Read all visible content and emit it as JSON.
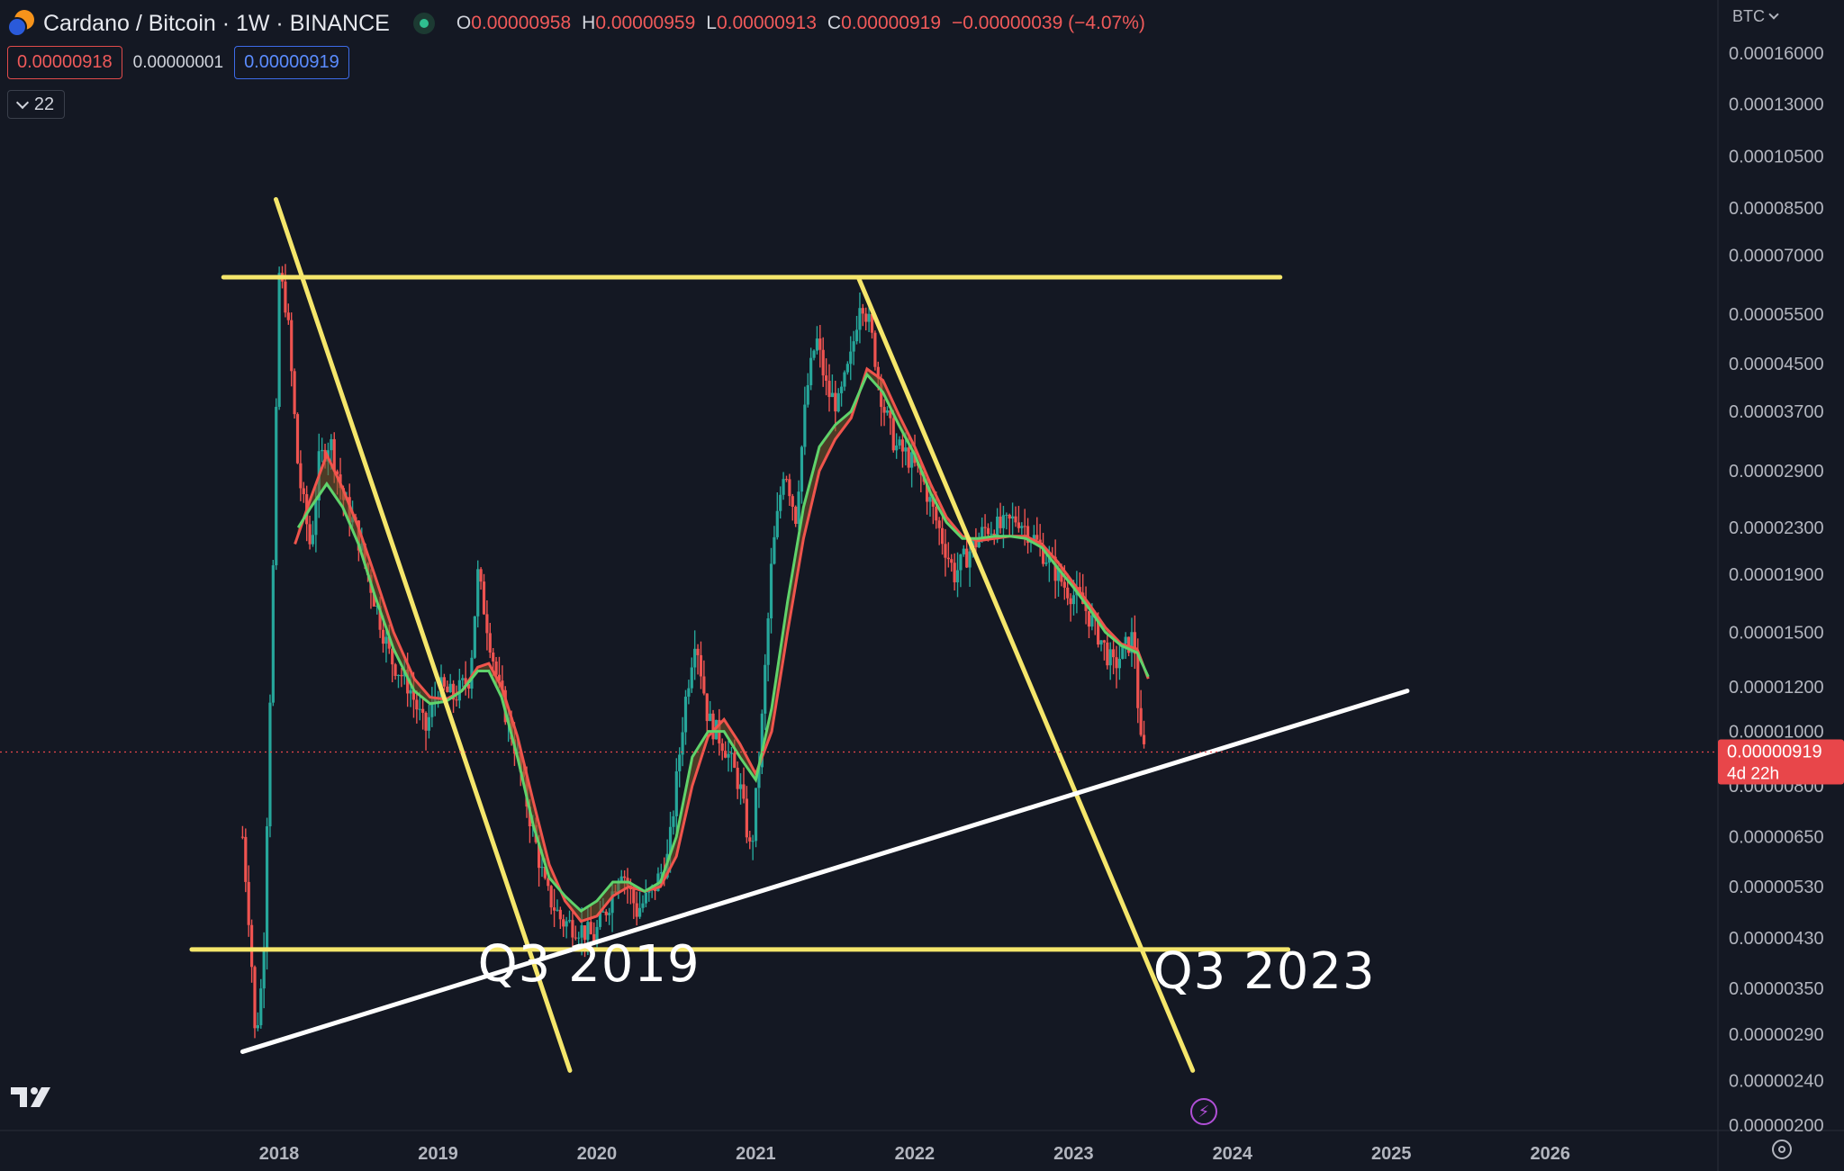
{
  "header": {
    "symbol_title": "Cardano / Bitcoin · 1W · BINANCE",
    "ohlc": {
      "o_label": "O",
      "o_value": "0.00000958",
      "h_label": "H",
      "h_value": "0.00000959",
      "l_label": "L",
      "l_value": "0.00000913",
      "c_label": "C",
      "c_value": "0.00000919",
      "change": "−0.00000039 (−4.07%)"
    }
  },
  "prices": {
    "sell": "0.00000918",
    "spread": "0.00000001",
    "buy": "0.00000919"
  },
  "indicator_toggle": {
    "count": "22"
  },
  "price_scale": {
    "currency": "BTC"
  },
  "last_price": {
    "value": "0.00000919",
    "countdown": "4d 22h"
  },
  "colors": {
    "background": "#141823",
    "bull": "#26a69a",
    "bear": "#ef5350",
    "ma_fast": "#5fd36b",
    "ma_slow": "#f0544c",
    "trendline_yellow": "#f5e66b",
    "trendline_white": "#ffffff",
    "last_price_bg": "#e8464a"
  },
  "chart_data": {
    "type": "candlestick",
    "scale": "log",
    "y_ticks": [
      0.00016,
      0.00013,
      0.000105,
      8.5e-05,
      7e-05,
      5.5e-05,
      4.5e-05,
      3.7e-05,
      2.9e-05,
      2.3e-05,
      1.9e-05,
      1.5e-05,
      1.2e-05,
      1e-05,
      8e-06,
      6.5e-06,
      5.3e-06,
      4.3e-06,
      3.5e-06,
      2.9e-06,
      2.4e-06,
      2e-06
    ],
    "y_tick_labels": [
      "0.00016000",
      "0.00013000",
      "0.00010500",
      "0.00008500",
      "0.00007000",
      "0.00005500",
      "0.00004500",
      "0.00003700",
      "0.00002900",
      "0.00002300",
      "0.00001900",
      "0.00001500",
      "0.00001200",
      "0.00001000",
      "0.00000800",
      "0.00000650",
      "0.00000530",
      "0.00000430",
      "0.00000350",
      "0.00000290",
      "0.00000240",
      "0.00000200"
    ],
    "x_labels": [
      "2018",
      "2019",
      "2020",
      "2021",
      "2022",
      "2023",
      "2024",
      "2025",
      "2026"
    ],
    "x_label_dates": [
      2018.0,
      2019.0,
      2020.0,
      2021.0,
      2022.0,
      2023.0,
      2024.0,
      2025.0,
      2026.0
    ],
    "price_path": [
      [
        2017.77,
        6.5e-06
      ],
      [
        2017.82,
        4.3e-06
      ],
      [
        2017.85,
        2.8e-06
      ],
      [
        2017.9,
        3.8e-06
      ],
      [
        2017.96,
        1.8e-05
      ],
      [
        2018.0,
        6.5e-05
      ],
      [
        2018.05,
        5.6e-05
      ],
      [
        2018.12,
        2.9e-05
      ],
      [
        2018.2,
        2.1e-05
      ],
      [
        2018.25,
        3e-05
      ],
      [
        2018.32,
        3.3e-05
      ],
      [
        2018.4,
        2.6e-05
      ],
      [
        2018.48,
        2.3e-05
      ],
      [
        2018.58,
        1.8e-05
      ],
      [
        2018.7,
        1.35e-05
      ],
      [
        2018.82,
        1.2e-05
      ],
      [
        2018.92,
        1e-05
      ],
      [
        2019.0,
        1.2e-05
      ],
      [
        2019.1,
        1.15e-05
      ],
      [
        2019.2,
        1.25e-05
      ],
      [
        2019.25,
        1.9e-05
      ],
      [
        2019.3,
        1.6e-05
      ],
      [
        2019.38,
        1.2e-05
      ],
      [
        2019.48,
        9.5e-06
      ],
      [
        2019.58,
        7e-06
      ],
      [
        2019.68,
        5.2e-06
      ],
      [
        2019.78,
        4.6e-06
      ],
      [
        2019.88,
        4.5e-06
      ],
      [
        2019.98,
        4.3e-06
      ],
      [
        2020.08,
        5e-06
      ],
      [
        2020.15,
        5.8e-06
      ],
      [
        2020.25,
        4.8e-06
      ],
      [
        2020.35,
        5.2e-06
      ],
      [
        2020.45,
        6e-06
      ],
      [
        2020.55,
        1.1e-05
      ],
      [
        2020.62,
        1.5e-05
      ],
      [
        2020.7,
        1.05e-05
      ],
      [
        2020.8,
        9.5e-06
      ],
      [
        2020.9,
        8e-06
      ],
      [
        2020.97,
        6e-06
      ],
      [
        2021.03,
        9.5e-06
      ],
      [
        2021.1,
        2e-05
      ],
      [
        2021.18,
        3e-05
      ],
      [
        2021.25,
        2.4e-05
      ],
      [
        2021.32,
        4e-05
      ],
      [
        2021.38,
        5e-05
      ],
      [
        2021.45,
        4e-05
      ],
      [
        2021.52,
        3.8e-05
      ],
      [
        2021.6,
        4.6e-05
      ],
      [
        2021.66,
        6e-05
      ],
      [
        2021.72,
        5.2e-05
      ],
      [
        2021.8,
        3.8e-05
      ],
      [
        2021.88,
        3.2e-05
      ],
      [
        2021.95,
        3.1e-05
      ],
      [
        2022.05,
        2.8e-05
      ],
      [
        2022.15,
        2.3e-05
      ],
      [
        2022.25,
        1.9e-05
      ],
      [
        2022.35,
        2.1e-05
      ],
      [
        2022.45,
        2.3e-05
      ],
      [
        2022.55,
        2.3e-05
      ],
      [
        2022.65,
        2.4e-05
      ],
      [
        2022.75,
        2.2e-05
      ],
      [
        2022.85,
        2e-05
      ],
      [
        2022.95,
        1.8e-05
      ],
      [
        2023.05,
        1.7e-05
      ],
      [
        2023.15,
        1.5e-05
      ],
      [
        2023.25,
        1.3e-05
      ],
      [
        2023.32,
        1.4e-05
      ],
      [
        2023.38,
        1.48e-05
      ],
      [
        2023.42,
        9.5e-06
      ],
      [
        2023.45,
        9.19e-06
      ]
    ],
    "ma_fast_path": [
      [
        2018.12,
        2.3e-05
      ],
      [
        2018.2,
        2.5e-05
      ],
      [
        2018.3,
        2.75e-05
      ],
      [
        2018.4,
        2.5e-05
      ],
      [
        2018.5,
        2.15e-05
      ],
      [
        2018.6,
        1.75e-05
      ],
      [
        2018.72,
        1.4e-05
      ],
      [
        2018.85,
        1.18e-05
      ],
      [
        2018.95,
        1.12e-05
      ],
      [
        2019.05,
        1.13e-05
      ],
      [
        2019.15,
        1.18e-05
      ],
      [
        2019.25,
        1.28e-05
      ],
      [
        2019.32,
        1.28e-05
      ],
      [
        2019.4,
        1.15e-05
      ],
      [
        2019.5,
        9e-06
      ],
      [
        2019.6,
        6.8e-06
      ],
      [
        2019.7,
        5.5e-06
      ],
      [
        2019.8,
        5.1e-06
      ],
      [
        2019.9,
        4.8e-06
      ],
      [
        2020.0,
        5e-06
      ],
      [
        2020.1,
        5.4e-06
      ],
      [
        2020.2,
        5.4e-06
      ],
      [
        2020.3,
        5.2e-06
      ],
      [
        2020.4,
        5.4e-06
      ],
      [
        2020.5,
        6.5e-06
      ],
      [
        2020.6,
        9e-06
      ],
      [
        2020.7,
        1e-05
      ],
      [
        2020.8,
        1e-05
      ],
      [
        2020.9,
        9e-06
      ],
      [
        2021.0,
        8.2e-06
      ],
      [
        2021.1,
        1.1e-05
      ],
      [
        2021.2,
        1.7e-05
      ],
      [
        2021.3,
        2.5e-05
      ],
      [
        2021.4,
        3.2e-05
      ],
      [
        2021.5,
        3.5e-05
      ],
      [
        2021.6,
        3.7e-05
      ],
      [
        2021.7,
        4.3e-05
      ],
      [
        2021.8,
        4e-05
      ],
      [
        2021.9,
        3.5e-05
      ],
      [
        2022.0,
        3.1e-05
      ],
      [
        2022.1,
        2.65e-05
      ],
      [
        2022.2,
        2.35e-05
      ],
      [
        2022.3,
        2.2e-05
      ],
      [
        2022.4,
        2.2e-05
      ],
      [
        2022.5,
        2.22e-05
      ],
      [
        2022.6,
        2.22e-05
      ],
      [
        2022.7,
        2.2e-05
      ],
      [
        2022.8,
        2.12e-05
      ],
      [
        2022.9,
        1.95e-05
      ],
      [
        2023.0,
        1.8e-05
      ],
      [
        2023.1,
        1.65e-05
      ],
      [
        2023.2,
        1.5e-05
      ],
      [
        2023.3,
        1.42e-05
      ],
      [
        2023.4,
        1.38e-05
      ],
      [
        2023.47,
        1.25e-05
      ]
    ],
    "ma_slow_path": [
      [
        2018.1,
        2.15e-05
      ],
      [
        2018.2,
        2.6e-05
      ],
      [
        2018.3,
        3.1e-05
      ],
      [
        2018.4,
        2.7e-05
      ],
      [
        2018.5,
        2.3e-05
      ],
      [
        2018.6,
        1.9e-05
      ],
      [
        2018.72,
        1.5e-05
      ],
      [
        2018.85,
        1.24e-05
      ],
      [
        2018.95,
        1.15e-05
      ],
      [
        2019.05,
        1.14e-05
      ],
      [
        2019.15,
        1.18e-05
      ],
      [
        2019.25,
        1.3e-05
      ],
      [
        2019.32,
        1.32e-05
      ],
      [
        2019.4,
        1.2e-05
      ],
      [
        2019.5,
        9.8e-06
      ],
      [
        2019.6,
        7.5e-06
      ],
      [
        2019.7,
        5.8e-06
      ],
      [
        2019.8,
        5e-06
      ],
      [
        2019.9,
        4.6e-06
      ],
      [
        2020.0,
        4.7e-06
      ],
      [
        2020.1,
        5.1e-06
      ],
      [
        2020.2,
        5.3e-06
      ],
      [
        2020.3,
        5.2e-06
      ],
      [
        2020.4,
        5.3e-06
      ],
      [
        2020.5,
        6e-06
      ],
      [
        2020.6,
        8e-06
      ],
      [
        2020.7,
        9.8e-06
      ],
      [
        2020.8,
        1.05e-05
      ],
      [
        2020.9,
        9.5e-06
      ],
      [
        2021.0,
        8.4e-06
      ],
      [
        2021.1,
        1e-05
      ],
      [
        2021.2,
        1.5e-05
      ],
      [
        2021.3,
        2.2e-05
      ],
      [
        2021.4,
        2.9e-05
      ],
      [
        2021.5,
        3.3e-05
      ],
      [
        2021.6,
        3.6e-05
      ],
      [
        2021.7,
        4.4e-05
      ],
      [
        2021.8,
        4.2e-05
      ],
      [
        2021.9,
        3.65e-05
      ],
      [
        2022.0,
        3.2e-05
      ],
      [
        2022.1,
        2.75e-05
      ],
      [
        2022.2,
        2.4e-05
      ],
      [
        2022.3,
        2.22e-05
      ],
      [
        2022.4,
        2.18e-05
      ],
      [
        2022.5,
        2.2e-05
      ],
      [
        2022.6,
        2.22e-05
      ],
      [
        2022.7,
        2.22e-05
      ],
      [
        2022.8,
        2.15e-05
      ],
      [
        2022.9,
        2e-05
      ],
      [
        2023.0,
        1.83e-05
      ],
      [
        2023.1,
        1.68e-05
      ],
      [
        2023.2,
        1.53e-05
      ],
      [
        2023.3,
        1.43e-05
      ],
      [
        2023.4,
        1.4e-05
      ],
      [
        2023.47,
        1.24e-05
      ]
    ],
    "trendlines": [
      {
        "name": "resistance-horizontal",
        "color": "yellow",
        "points": [
          [
            2017.65,
            6.4e-05
          ],
          [
            2024.3,
            6.4e-05
          ]
        ]
      },
      {
        "name": "support-horizontal",
        "color": "yellow",
        "points": [
          [
            2017.45,
            4.1e-06
          ],
          [
            2024.35,
            4.1e-06
          ]
        ]
      },
      {
        "name": "descending-2018",
        "color": "yellow",
        "points": [
          [
            2017.98,
            8.8e-05
          ],
          [
            2019.83,
            2.5e-06
          ]
        ]
      },
      {
        "name": "descending-2021",
        "color": "yellow",
        "points": [
          [
            2021.65,
            6.35e-05
          ],
          [
            2023.75,
            2.5e-06
          ]
        ]
      },
      {
        "name": "ascending-support",
        "color": "white",
        "points": [
          [
            2017.77,
            2.7e-06
          ],
          [
            2025.1,
            1.18e-05
          ]
        ]
      }
    ],
    "annotations": [
      {
        "text": "Q3 2019",
        "x": 2019.95,
        "y": 3.6e-06
      },
      {
        "text": "Q3 2023",
        "x": 2024.2,
        "y": 3.5e-06
      }
    ]
  }
}
